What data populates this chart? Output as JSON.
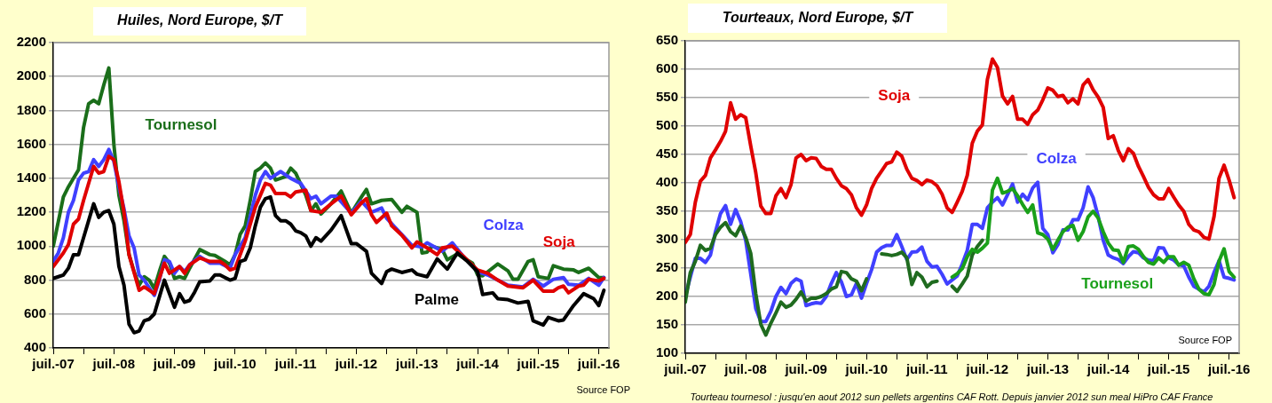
{
  "chart_data": [
    {
      "type": "line",
      "title": "Huiles, Nord Europe, $/T",
      "xlim": [
        "2007-07",
        "2016-09"
      ],
      "ylim": [
        400,
        2200
      ],
      "yticks": [
        400,
        600,
        800,
        1000,
        1200,
        1400,
        1600,
        1800,
        2000,
        2200
      ],
      "xticks": [
        {
          "value": "2007-07",
          "label": "juil.-07"
        },
        {
          "value": "2008-01",
          "label": null
        },
        {
          "value": "2008-07",
          "label": "juil.-08"
        },
        {
          "value": "2009-01",
          "label": null
        },
        {
          "value": "2009-07",
          "label": "juil.-09"
        },
        {
          "value": "2010-01",
          "label": null
        },
        {
          "value": "2010-07",
          "label": "juil.-10"
        },
        {
          "value": "2011-01",
          "label": null
        },
        {
          "value": "2011-07",
          "label": "juil.-11"
        },
        {
          "value": "2012-01",
          "label": null
        },
        {
          "value": "2012-07",
          "label": "juil.-12"
        },
        {
          "value": "2013-01",
          "label": null
        },
        {
          "value": "2013-07",
          "label": "juil.-13"
        },
        {
          "value": "2014-01",
          "label": null
        },
        {
          "value": "2014-07",
          "label": "juil.-14"
        },
        {
          "value": "2015-01",
          "label": null
        },
        {
          "value": "2015-07",
          "label": "juil.-15"
        },
        {
          "value": "2016-01",
          "label": null
        },
        {
          "value": "2016-07",
          "label": "juil.-16"
        }
      ],
      "grid": "y",
      "legend": false,
      "annotations": [
        "Source FOP"
      ],
      "series": [
        {
          "name": "Tournesol",
          "color": "#1a6e1a",
          "x": [
            "2007-07",
            "2007-09",
            "2007-10",
            "2007-12",
            "2008-01",
            "2008-02",
            "2008-03",
            "2008-04",
            "2008-05",
            "2008-06",
            "2008-07",
            "2008-08",
            "2008-09",
            "2008-10",
            "2008-11",
            "2008-12",
            "2009-01",
            "2009-02",
            "2009-03",
            "2009-04",
            "2009-05",
            "2009-06",
            "2009-07",
            "2009-08",
            "2009-09",
            "2009-10",
            "2009-12",
            "2010-02",
            "2010-03",
            "2010-05",
            "2010-06",
            "2010-07",
            "2010-08",
            "2010-09",
            "2010-10",
            "2010-11",
            "2010-12",
            "2011-01",
            "2011-02",
            "2011-03",
            "2011-05",
            "2011-06",
            "2011-07",
            "2011-09",
            "2011-10",
            "2011-11",
            "2011-12",
            "2012-02",
            "2012-04",
            "2012-06",
            "2012-08",
            "2012-09",
            "2012-10",
            "2012-12",
            "2013-02",
            "2013-04",
            "2013-05",
            "2013-07",
            "2013-08",
            "2013-09",
            "2013-10",
            "2013-12",
            "2014-01",
            "2014-03",
            "2014-04",
            "2014-06",
            "2014-07",
            "2014-08",
            "2014-11",
            "2015-01",
            "2015-02",
            "2015-03",
            "2015-05",
            "2015-06",
            "2015-07",
            "2015-09",
            "2015-10",
            "2015-12",
            "2016-02",
            "2016-03",
            "2016-05",
            "2016-07",
            "2016-08"
          ],
          "values": [
            1000,
            1290,
            1350,
            1450,
            1700,
            1840,
            1860,
            1840,
            1950,
            2050,
            1600,
            1300,
            1150,
            950,
            850,
            770,
            820,
            800,
            750,
            850,
            940,
            900,
            810,
            820,
            810,
            870,
            980,
            950,
            945,
            910,
            890,
            950,
            1070,
            1120,
            1270,
            1440,
            1460,
            1490,
            1460,
            1390,
            1410,
            1460,
            1430,
            1300,
            1210,
            1250,
            1190,
            1250,
            1325,
            1195,
            1290,
            1335,
            1250,
            1270,
            1275,
            1200,
            1235,
            1200,
            960,
            965,
            1000,
            980,
            920,
            955,
            935,
            900,
            830,
            825,
            895,
            855,
            805,
            805,
            910,
            920,
            820,
            810,
            885,
            865,
            860,
            845,
            870,
            815,
            815
          ]
        },
        {
          "name": "Colza",
          "color": "#4040ff",
          "x": [
            "2007-07",
            "2007-08",
            "2007-09",
            "2007-10",
            "2007-11",
            "2007-12",
            "2008-01",
            "2008-02",
            "2008-03",
            "2008-04",
            "2008-05",
            "2008-06",
            "2008-07",
            "2008-08",
            "2008-09",
            "2008-10",
            "2008-11",
            "2008-12",
            "2009-01",
            "2009-03",
            "2009-04",
            "2009-05",
            "2009-06",
            "2009-07",
            "2009-08",
            "2009-09",
            "2009-10",
            "2009-12",
            "2010-02",
            "2010-04",
            "2010-06",
            "2010-07",
            "2010-09",
            "2010-11",
            "2010-12",
            "2011-01",
            "2011-02",
            "2011-04",
            "2011-06",
            "2011-08",
            "2011-10",
            "2011-11",
            "2011-12",
            "2012-02",
            "2012-03",
            "2012-06",
            "2012-08",
            "2012-10",
            "2012-12",
            "2013-01",
            "2013-03",
            "2013-06",
            "2013-08",
            "2013-09",
            "2013-12",
            "2014-02",
            "2014-04",
            "2014-07",
            "2014-09",
            "2015-01",
            "2015-04",
            "2015-06",
            "2015-08",
            "2015-10",
            "2015-12",
            "2016-01",
            "2016-03",
            "2016-05",
            "2016-07",
            "2016-08"
          ],
          "values": [
            910,
            960,
            1050,
            1200,
            1270,
            1390,
            1430,
            1440,
            1510,
            1470,
            1510,
            1570,
            1500,
            1350,
            1220,
            1060,
            990,
            830,
            800,
            710,
            800,
            920,
            910,
            840,
            880,
            850,
            890,
            940,
            900,
            900,
            870,
            950,
            1050,
            1300,
            1390,
            1440,
            1400,
            1440,
            1400,
            1370,
            1280,
            1295,
            1250,
            1295,
            1295,
            1195,
            1265,
            1200,
            1225,
            1165,
            1100,
            1005,
            995,
            1020,
            970,
            1020,
            945,
            850,
            830,
            770,
            760,
            805,
            765,
            805,
            815,
            775,
            770,
            810,
            770,
            815
          ]
        },
        {
          "name": "Soja",
          "color": "#e00000",
          "x": [
            "2007-07",
            "2007-09",
            "2007-10",
            "2007-11",
            "2007-12",
            "2008-01",
            "2008-03",
            "2008-04",
            "2008-05",
            "2008-06",
            "2008-07",
            "2008-08",
            "2008-09",
            "2008-10",
            "2008-12",
            "2009-01",
            "2009-03",
            "2009-05",
            "2009-06",
            "2009-07",
            "2009-08",
            "2009-09",
            "2009-10",
            "2009-12",
            "2010-02",
            "2010-04",
            "2010-05",
            "2010-06",
            "2010-07",
            "2010-09",
            "2010-11",
            "2011-01",
            "2011-02",
            "2011-03",
            "2011-05",
            "2011-06",
            "2011-07",
            "2011-09",
            "2011-10",
            "2011-12",
            "2012-02",
            "2012-04",
            "2012-06",
            "2012-08",
            "2012-09",
            "2012-10",
            "2012-11",
            "2013-01",
            "2013-02",
            "2013-04",
            "2013-06",
            "2013-07",
            "2013-09",
            "2013-11",
            "2013-12",
            "2014-02",
            "2014-04",
            "2014-07",
            "2014-09",
            "2014-11",
            "2015-01",
            "2015-04",
            "2015-06",
            "2015-08",
            "2015-10",
            "2015-11",
            "2015-12",
            "2016-01",
            "2016-03",
            "2016-04",
            "2016-05",
            "2016-07",
            "2016-08"
          ],
          "values": [
            880,
            960,
            1010,
            1130,
            1160,
            1270,
            1470,
            1430,
            1440,
            1530,
            1510,
            1380,
            1200,
            950,
            740,
            760,
            720,
            900,
            840,
            860,
            880,
            840,
            890,
            930,
            910,
            910,
            890,
            860,
            870,
            1030,
            1230,
            1370,
            1360,
            1310,
            1310,
            1290,
            1320,
            1330,
            1210,
            1200,
            1250,
            1295,
            1185,
            1255,
            1280,
            1185,
            1140,
            1195,
            1120,
            1065,
            990,
            1025,
            990,
            950,
            990,
            1000,
            945,
            860,
            840,
            800,
            765,
            755,
            800,
            735,
            735,
            755,
            765,
            725,
            765,
            770,
            805,
            795,
            810
          ]
        },
        {
          "name": "Palme",
          "color": "#000000",
          "x": [
            "2007-07",
            "2007-08",
            "2007-09",
            "2007-10",
            "2007-11",
            "2007-12",
            "2008-01",
            "2008-02",
            "2008-03",
            "2008-04",
            "2008-05",
            "2008-06",
            "2008-07",
            "2008-08",
            "2008-09",
            "2008-10",
            "2008-11",
            "2008-12",
            "2009-01",
            "2009-02",
            "2009-03",
            "2009-04",
            "2009-05",
            "2009-06",
            "2009-07",
            "2009-08",
            "2009-09",
            "2009-10",
            "2009-11",
            "2009-12",
            "2010-02",
            "2010-03",
            "2010-04",
            "2010-06",
            "2010-07",
            "2010-08",
            "2010-09",
            "2010-10",
            "2010-11",
            "2010-12",
            "2011-01",
            "2011-02",
            "2011-03",
            "2011-04",
            "2011-05",
            "2011-06",
            "2011-07",
            "2011-08",
            "2011-09",
            "2011-10",
            "2011-11",
            "2011-12",
            "2012-02",
            "2012-04",
            "2012-06",
            "2012-07",
            "2012-09",
            "2012-10",
            "2012-12",
            "2013-01",
            "2013-02",
            "2013-04",
            "2013-06",
            "2013-07",
            "2013-09",
            "2013-11",
            "2014-01",
            "2014-03",
            "2014-05",
            "2014-07",
            "2014-08",
            "2014-10",
            "2014-11",
            "2015-01",
            "2015-03",
            "2015-05",
            "2015-06",
            "2015-08",
            "2015-09",
            "2015-11",
            "2015-12",
            "2016-02",
            "2016-04",
            "2016-06",
            "2016-07",
            "2016-08"
          ],
          "values": [
            810,
            820,
            830,
            870,
            950,
            950,
            1050,
            1150,
            1250,
            1170,
            1200,
            1210,
            1130,
            880,
            770,
            540,
            490,
            500,
            560,
            570,
            600,
            700,
            800,
            720,
            640,
            720,
            670,
            680,
            730,
            790,
            795,
            830,
            830,
            800,
            810,
            910,
            920,
            990,
            1120,
            1230,
            1280,
            1290,
            1180,
            1150,
            1150,
            1130,
            1090,
            1080,
            1060,
            1000,
            1050,
            1030,
            1095,
            1180,
            1015,
            1015,
            970,
            840,
            780,
            850,
            865,
            845,
            860,
            835,
            820,
            925,
            865,
            960,
            910,
            850,
            715,
            725,
            690,
            685,
            665,
            675,
            560,
            535,
            580,
            560,
            565,
            650,
            720,
            690,
            650,
            740
          ]
        }
      ]
    },
    {
      "type": "line",
      "title": "Tourteaux, Nord Europe, $/T",
      "xlim": [
        "2007-07",
        "2016-09"
      ],
      "ylim": [
        100,
        650
      ],
      "yticks": [
        100,
        150,
        200,
        250,
        300,
        350,
        400,
        450,
        500,
        550,
        600,
        650
      ],
      "xticks": [
        {
          "value": "2007-07",
          "label": "juil.-07"
        },
        {
          "value": "2008-01",
          "label": null
        },
        {
          "value": "2008-07",
          "label": "juil.-08"
        },
        {
          "value": "2009-01",
          "label": null
        },
        {
          "value": "2009-07",
          "label": "juil.-09"
        },
        {
          "value": "2010-01",
          "label": null
        },
        {
          "value": "2010-07",
          "label": "juil.-10"
        },
        {
          "value": "2011-01",
          "label": null
        },
        {
          "value": "2011-07",
          "label": "juil.-11"
        },
        {
          "value": "2012-01",
          "label": null
        },
        {
          "value": "2012-07",
          "label": "juil.-12"
        },
        {
          "value": "2013-01",
          "label": null
        },
        {
          "value": "2013-07",
          "label": "juil.-13"
        },
        {
          "value": "2014-01",
          "label": null
        },
        {
          "value": "2014-07",
          "label": "juil.-14"
        },
        {
          "value": "2015-01",
          "label": null
        },
        {
          "value": "2015-07",
          "label": "juil.-15"
        },
        {
          "value": "2016-01",
          "label": null
        },
        {
          "value": "2016-07",
          "label": "juil.-16"
        }
      ],
      "grid": "y",
      "legend": false,
      "annotations": [
        "Source FOP",
        "Tourteau tournesol : jusqu'en aout 2012 sun pellets argentins CAF Rott. Depuis janvier 2012 sun meal HiPro CAF France"
      ],
      "x": [
        "2007-07",
        "2007-08",
        "2007-09",
        "2007-10",
        "2007-11",
        "2007-12",
        "2008-01",
        "2008-02",
        "2008-03",
        "2008-04",
        "2008-05",
        "2008-06",
        "2008-07",
        "2008-08",
        "2008-09",
        "2008-10",
        "2008-11",
        "2008-12",
        "2009-01",
        "2009-02",
        "2009-03",
        "2009-04",
        "2009-05",
        "2009-06",
        "2009-07",
        "2009-08",
        "2009-09",
        "2009-10",
        "2009-11",
        "2009-12",
        "2010-01",
        "2010-02",
        "2010-03",
        "2010-04",
        "2010-05",
        "2010-06",
        "2010-07",
        "2010-08",
        "2010-09",
        "2010-10",
        "2010-11",
        "2010-12",
        "2011-01",
        "2011-02",
        "2011-03",
        "2011-04",
        "2011-05",
        "2011-06",
        "2011-07",
        "2011-08",
        "2011-09",
        "2011-10",
        "2011-11",
        "2011-12",
        "2012-01",
        "2012-02",
        "2012-03",
        "2012-04",
        "2012-05",
        "2012-06",
        "2012-07",
        "2012-08",
        "2012-09",
        "2012-10",
        "2012-11",
        "2012-12",
        "2013-01",
        "2013-02",
        "2013-03",
        "2013-04",
        "2013-05",
        "2013-06",
        "2013-07",
        "2013-08",
        "2013-09",
        "2013-10",
        "2013-11",
        "2013-12",
        "2014-01",
        "2014-02",
        "2014-03",
        "2014-04",
        "2014-05",
        "2014-06",
        "2014-07",
        "2014-08",
        "2014-09",
        "2014-10",
        "2014-11",
        "2014-12",
        "2015-01",
        "2015-02",
        "2015-03",
        "2015-04",
        "2015-05",
        "2015-06",
        "2015-07",
        "2015-08",
        "2015-09",
        "2015-10",
        "2015-11",
        "2015-12",
        "2016-01",
        "2016-02",
        "2016-03",
        "2016-04",
        "2016-05",
        "2016-06",
        "2016-07",
        "2016-08"
      ],
      "series": [
        {
          "name": "Soja",
          "color": "#e00000",
          "values": [
            295,
            309,
            366,
            403,
            413,
            444,
            458,
            473,
            491,
            541,
            512,
            520,
            515,
            465,
            418,
            359,
            346,
            346,
            377,
            390,
            374,
            397,
            444,
            450,
            439,
            444,
            443,
            429,
            424,
            424,
            408,
            395,
            390,
            379,
            356,
            343,
            361,
            390,
            408,
            421,
            434,
            437,
            454,
            447,
            424,
            408,
            404,
            397,
            405,
            402,
            395,
            380,
            356,
            348,
            366,
            385,
            413,
            470,
            491,
            502,
            582,
            618,
            603,
            553,
            539,
            552,
            512,
            512,
            503,
            520,
            528,
            546,
            567,
            563,
            552,
            554,
            541,
            548,
            539,
            572,
            582,
            564,
            551,
            533,
            478,
            483,
            457,
            439,
            460,
            452,
            429,
            411,
            392,
            379,
            372,
            372,
            390,
            375,
            361,
            350,
            327,
            317,
            314,
            304,
            301,
            340,
            408,
            431,
            405,
            374
          ]
        },
        {
          "name": "Colza",
          "color": "#4040ff",
          "values": [
            200,
            234,
            267,
            267,
            260,
            273,
            314,
            346,
            360,
            327,
            353,
            332,
            299,
            240,
            179,
            156,
            156,
            174,
            200,
            216,
            205,
            223,
            231,
            227,
            184,
            187,
            189,
            188,
            200,
            223,
            242,
            226,
            200,
            203,
            223,
            197,
            223,
            247,
            278,
            286,
            290,
            290,
            309,
            288,
            265,
            278,
            279,
            287,
            262,
            252,
            253,
            239,
            222,
            229,
            236,
            257,
            281,
            327,
            327,
            320,
            356,
            366,
            374,
            361,
            379,
            398,
            366,
            380,
            370,
            391,
            401,
            320,
            309,
            277,
            291,
            317,
            317,
            335,
            335,
            356,
            393,
            374,
            341,
            299,
            273,
            268,
            265,
            258,
            270,
            279,
            277,
            268,
            264,
            263,
            286,
            285,
            268,
            264,
            256,
            254,
            234,
            218,
            213,
            208,
            218,
            242,
            263,
            234,
            232,
            229
          ]
        },
        {
          "color": "#1f6b1f",
          "values": [
            190,
            242,
            262,
            290,
            281,
            285,
            309,
            322,
            330,
            314,
            307,
            324,
            304,
            276,
            205,
            151,
            132,
            153,
            171,
            190,
            181,
            185,
            195,
            208,
            192,
            197,
            197,
            200,
            205,
            213,
            217,
            244,
            242,
            231,
            227,
            210,
            231,
            null,
            null,
            275,
            274,
            272,
            274,
            278,
            268,
            221,
            242,
            234,
            217,
            225,
            227,
            null,
            null,
            218,
            209,
            222,
            236,
            273,
            288,
            299,
            null,
            null,
            null,
            null,
            null,
            null,
            null,
            null,
            null,
            null,
            null,
            null,
            null,
            null,
            null,
            null,
            null,
            null,
            null,
            null,
            null,
            null,
            null,
            null,
            null,
            null,
            null,
            null,
            null,
            null,
            null,
            null,
            null,
            null,
            null,
            null,
            null,
            null,
            null,
            null,
            null,
            null,
            null,
            null,
            null,
            null,
            null,
            null,
            null,
            null
          ]
        },
        {
          "name": "Tournesol",
          "color": "#1aa01a",
          "values": [
            null,
            null,
            null,
            null,
            null,
            null,
            null,
            null,
            null,
            null,
            null,
            null,
            null,
            null,
            null,
            null,
            null,
            null,
            null,
            null,
            null,
            null,
            null,
            null,
            null,
            null,
            null,
            null,
            null,
            null,
            null,
            null,
            null,
            null,
            null,
            null,
            null,
            null,
            null,
            null,
            null,
            null,
            null,
            null,
            null,
            null,
            null,
            null,
            null,
            null,
            null,
            null,
            null,
            234,
            240,
            249,
            270,
            283,
            278,
            285,
            294,
            387,
            408,
            382,
            385,
            390,
            377,
            362,
            348,
            361,
            312,
            309,
            301,
            283,
            299,
            314,
            322,
            325,
            299,
            314,
            340,
            350,
            338,
            314,
            294,
            282,
            281,
            260,
            288,
            289,
            283,
            270,
            260,
            257,
            268,
            260,
            270,
            270,
            255,
            260,
            255,
            231,
            213,
            205,
            203,
            221,
            262,
            284,
            244,
            234
          ]
        }
      ]
    }
  ]
}
